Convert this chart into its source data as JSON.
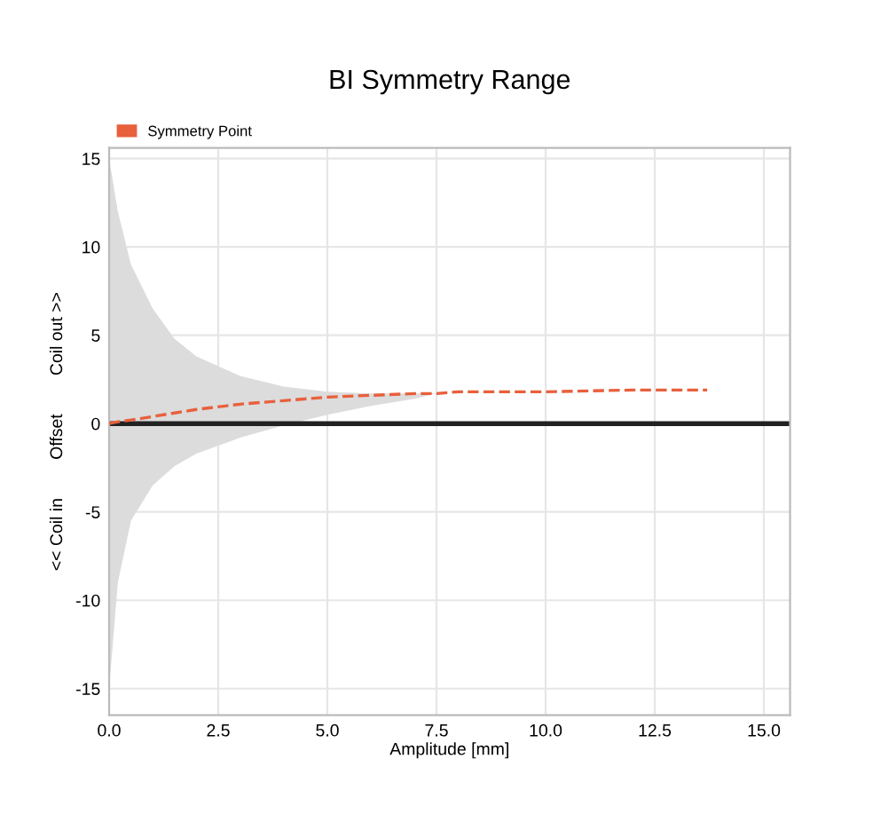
{
  "chart_data": {
    "type": "line",
    "title": "BI Symmetry Range",
    "xlabel": "Amplitude [mm]",
    "ylabel": "<< Coil in        Offset        Coil out >>",
    "xlim": [
      0,
      15.6
    ],
    "ylim": [
      -16.5,
      15.6
    ],
    "xticks": [
      {
        "value": 0,
        "label": "0.0"
      },
      {
        "value": 2.5,
        "label": "2.5"
      },
      {
        "value": 5,
        "label": "5.0"
      },
      {
        "value": 7.5,
        "label": "7.5"
      },
      {
        "value": 10,
        "label": "10.0"
      },
      {
        "value": 12.5,
        "label": "12.5"
      },
      {
        "value": 15,
        "label": "15.0"
      }
    ],
    "yticks": [
      -15,
      -10,
      -5,
      0,
      5,
      10,
      15
    ],
    "grid": true,
    "legend": "top left",
    "series": [
      {
        "name": "Symmetry Point",
        "color": "#e8603c",
        "line_style": "dashed",
        "x": [
          0,
          0.2,
          0.5,
          1,
          1.5,
          2,
          3,
          4,
          5,
          6,
          7,
          7.5,
          8,
          10,
          12,
          13.7
        ],
        "values": [
          0,
          0.1,
          0.2,
          0.4,
          0.6,
          0.8,
          1.1,
          1.3,
          1.5,
          1.6,
          1.7,
          1.7,
          1.8,
          1.8,
          1.9,
          1.9
        ],
        "upper": [
          15,
          12,
          9,
          6.5,
          4.8,
          3.8,
          2.7,
          2.1,
          1.8,
          1.7,
          1.7,
          1.7,
          1.8,
          1.8,
          1.9,
          1.9
        ],
        "lower": [
          -15,
          -9,
          -5.5,
          -3.5,
          -2.4,
          -1.7,
          -0.8,
          -0.1,
          0.5,
          1.0,
          1.4,
          1.7,
          1.8,
          1.8,
          1.9,
          1.9
        ]
      }
    ],
    "ref_lines": [
      {
        "axis": "y",
        "value": 0,
        "color": "#222222"
      }
    ]
  }
}
